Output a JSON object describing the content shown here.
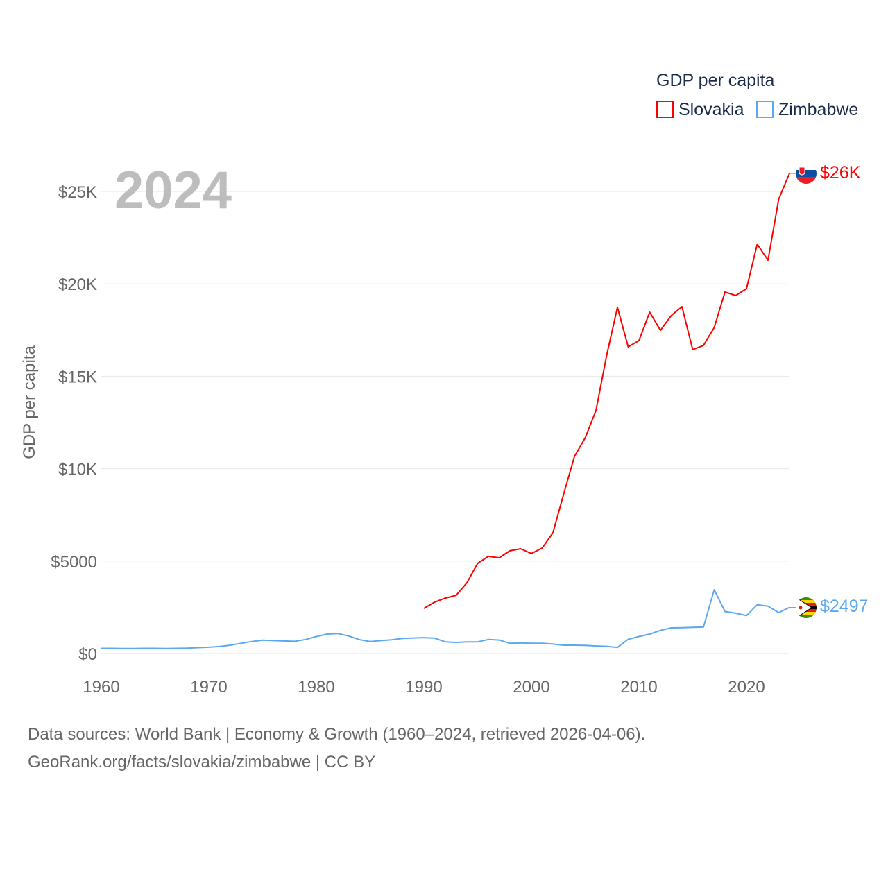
{
  "chart_data": {
    "type": "line",
    "year_label": "2024",
    "ylabel": "GDP per capita",
    "legend_title": "GDP per capita",
    "legend_placement": "top-right",
    "xlim": [
      1960,
      2024
    ],
    "ylim": [
      0,
      26500
    ],
    "x_ticks": [
      1960,
      1970,
      1980,
      1990,
      2000,
      2010,
      2020
    ],
    "y_ticks": [
      {
        "value": 0,
        "label": "$0"
      },
      {
        "value": 5000,
        "label": "$5000"
      },
      {
        "value": 10000,
        "label": "$10K"
      },
      {
        "value": 15000,
        "label": "$15K"
      },
      {
        "value": 20000,
        "label": "$20K"
      },
      {
        "value": 25000,
        "label": "$25K"
      }
    ],
    "grid": true,
    "series": [
      {
        "name": "Slovakia",
        "color": "#ff0000",
        "end_label": "$26K",
        "start_year": 1990,
        "values": [
          2440,
          2780,
          3000,
          3150,
          3830,
          4880,
          5260,
          5180,
          5560,
          5670,
          5410,
          5710,
          6530,
          8630,
          10660,
          11670,
          13140,
          16140,
          18730,
          16590,
          16930,
          18470,
          17490,
          18280,
          18770,
          16440,
          16670,
          17640,
          19560,
          19370,
          19740,
          22150,
          21280,
          24590,
          25980
        ]
      },
      {
        "name": "Zimbabwe",
        "color": "#5ba8f0",
        "end_label": "$2497",
        "start_year": 1960,
        "values": [
          280,
          280,
          270,
          270,
          280,
          280,
          270,
          280,
          290,
          320,
          340,
          380,
          450,
          550,
          650,
          720,
          700,
          680,
          660,
          760,
          920,
          1050,
          1080,
          950,
          750,
          650,
          700,
          740,
          820,
          840,
          860,
          830,
          630,
          600,
          630,
          630,
          760,
          730,
          550,
          570,
          550,
          550,
          510,
          450,
          450,
          440,
          410,
          390,
          330,
          770,
          920,
          1050,
          1250,
          1390,
          1400,
          1420,
          1430,
          3450,
          2270,
          2180,
          2050,
          2640,
          2560,
          2210,
          2497
        ]
      }
    ]
  },
  "footer": {
    "line1": "Data sources: World Bank | Economy & Growth (1960–2024, retrieved 2026-04-06).",
    "line2": "GeoRank.org/facts/slovakia/zimbabwe | CC BY"
  }
}
